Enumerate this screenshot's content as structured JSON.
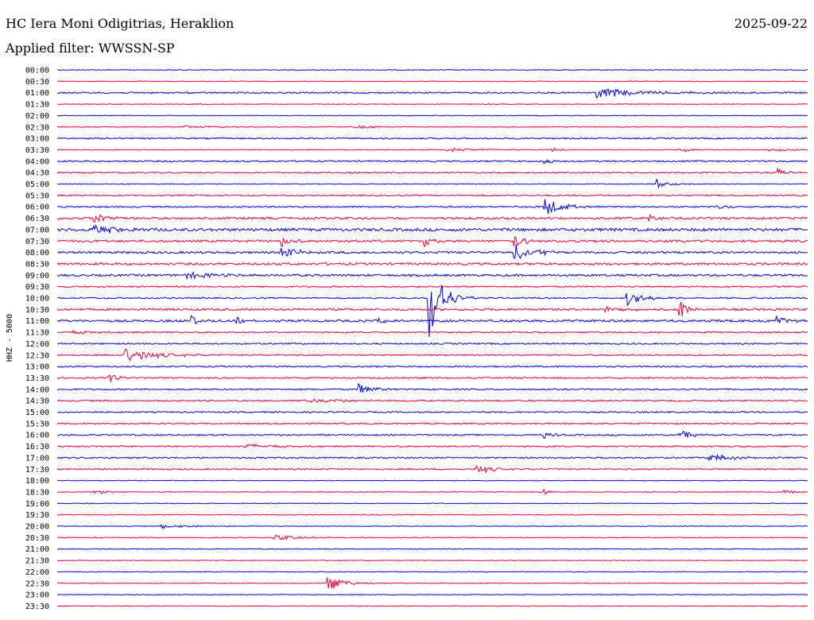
{
  "header": {
    "station": "HC Iera Moni Odigitrias, Heraklion",
    "date": "2025-09-22",
    "filter": "Applied filter: WWSSN-SP"
  },
  "chart_data": {
    "type": "line",
    "ylabel": "HHZ - 5000",
    "trace_colors": [
      "#0000dd",
      "#ee0033"
    ],
    "row_labels": [
      "00:00",
      "00:30",
      "01:00",
      "01:30",
      "02:00",
      "02:30",
      "03:00",
      "03:30",
      "04:00",
      "04:30",
      "05:00",
      "05:30",
      "06:00",
      "06:30",
      "07:00",
      "07:30",
      "08:00",
      "08:30",
      "09:00",
      "09:30",
      "10:00",
      "10:30",
      "11:00",
      "11:30",
      "12:00",
      "12:30",
      "13:00",
      "13:30",
      "14:00",
      "14:30",
      "15:00",
      "15:30",
      "16:00",
      "16:30",
      "17:00",
      "17:30",
      "18:00",
      "18:30",
      "19:00",
      "19:30",
      "20:00",
      "20:30",
      "21:00",
      "21:30",
      "22:00",
      "22:30",
      "23:00",
      "23:30"
    ],
    "noise_level": [
      1,
      1,
      2,
      1,
      1,
      1,
      2,
      1,
      2,
      2,
      1,
      2,
      2,
      3,
      4,
      3,
      3,
      3,
      3,
      2,
      2,
      3,
      3,
      2,
      2,
      2,
      2,
      2,
      2,
      2,
      2,
      2,
      2,
      2,
      2,
      2,
      1,
      1,
      1,
      1,
      1,
      1,
      1,
      1,
      1,
      1,
      1,
      1
    ],
    "events": [
      {
        "row": 2,
        "x": 0.72,
        "amp": 6,
        "dur": 0.06
      },
      {
        "row": 5,
        "x": 0.17,
        "amp": 2,
        "dur": 0.03
      },
      {
        "row": 5,
        "x": 0.4,
        "amp": 2,
        "dur": 0.03
      },
      {
        "row": 7,
        "x": 0.52,
        "amp": 2,
        "dur": 0.05
      },
      {
        "row": 7,
        "x": 0.66,
        "amp": 3,
        "dur": 0.01
      },
      {
        "row": 7,
        "x": 0.83,
        "amp": 4,
        "dur": 0.015
      },
      {
        "row": 7,
        "x": 0.95,
        "amp": 2,
        "dur": 0.03
      },
      {
        "row": 8,
        "x": 0.65,
        "amp": 5,
        "dur": 0.01
      },
      {
        "row": 9,
        "x": 0.96,
        "amp": 6,
        "dur": 0.01
      },
      {
        "row": 10,
        "x": 0.8,
        "amp": 6,
        "dur": 0.015
      },
      {
        "row": 12,
        "x": 0.65,
        "amp": 12,
        "dur": 0.02
      },
      {
        "row": 12,
        "x": 0.88,
        "amp": 5,
        "dur": 0.01
      },
      {
        "row": 13,
        "x": 0.05,
        "amp": 6,
        "dur": 0.02
      },
      {
        "row": 13,
        "x": 0.79,
        "amp": 5,
        "dur": 0.01
      },
      {
        "row": 14,
        "x": 0.05,
        "amp": 6,
        "dur": 0.03
      },
      {
        "row": 15,
        "x": 0.3,
        "amp": 8,
        "dur": 0.01
      },
      {
        "row": 15,
        "x": 0.49,
        "amp": 8,
        "dur": 0.01
      },
      {
        "row": 15,
        "x": 0.61,
        "amp": 7,
        "dur": 0.015
      },
      {
        "row": 16,
        "x": 0.3,
        "amp": 7,
        "dur": 0.02
      },
      {
        "row": 16,
        "x": 0.61,
        "amp": 9,
        "dur": 0.03
      },
      {
        "row": 18,
        "x": 0.17,
        "amp": 4,
        "dur": 0.04
      },
      {
        "row": 20,
        "x": 0.495,
        "amp": 60,
        "dur": 0.015
      },
      {
        "row": 20,
        "x": 0.76,
        "amp": 9,
        "dur": 0.02
      },
      {
        "row": 21,
        "x": 0.73,
        "amp": 5,
        "dur": 0.02
      },
      {
        "row": 21,
        "x": 0.83,
        "amp": 10,
        "dur": 0.01
      },
      {
        "row": 22,
        "x": 0.18,
        "amp": 8,
        "dur": 0.005
      },
      {
        "row": 22,
        "x": 0.24,
        "amp": 6,
        "dur": 0.01
      },
      {
        "row": 22,
        "x": 0.43,
        "amp": 8,
        "dur": 0.005
      },
      {
        "row": 22,
        "x": 0.96,
        "amp": 9,
        "dur": 0.01
      },
      {
        "row": 23,
        "x": 0.02,
        "amp": 2,
        "dur": 0.05
      },
      {
        "row": 25,
        "x": 0.09,
        "amp": 9,
        "dur": 0.04
      },
      {
        "row": 27,
        "x": 0.07,
        "amp": 6,
        "dur": 0.01
      },
      {
        "row": 28,
        "x": 0.4,
        "amp": 8,
        "dur": 0.02
      },
      {
        "row": 29,
        "x": 0.33,
        "amp": 3,
        "dur": 0.05
      },
      {
        "row": 32,
        "x": 0.65,
        "amp": 5,
        "dur": 0.01
      },
      {
        "row": 32,
        "x": 0.83,
        "amp": 5,
        "dur": 0.02
      },
      {
        "row": 33,
        "x": 0.25,
        "amp": 3,
        "dur": 0.04
      },
      {
        "row": 34,
        "x": 0.87,
        "amp": 5,
        "dur": 0.03
      },
      {
        "row": 35,
        "x": 0.56,
        "amp": 6,
        "dur": 0.02
      },
      {
        "row": 37,
        "x": 0.05,
        "amp": 5,
        "dur": 0.01
      },
      {
        "row": 37,
        "x": 0.65,
        "amp": 4,
        "dur": 0.005
      },
      {
        "row": 37,
        "x": 0.97,
        "amp": 4,
        "dur": 0.01
      },
      {
        "row": 40,
        "x": 0.14,
        "amp": 3,
        "dur": 0.03
      },
      {
        "row": 41,
        "x": 0.29,
        "amp": 3,
        "dur": 0.04
      },
      {
        "row": 45,
        "x": 0.36,
        "amp": 10,
        "dur": 0.02
      }
    ]
  }
}
